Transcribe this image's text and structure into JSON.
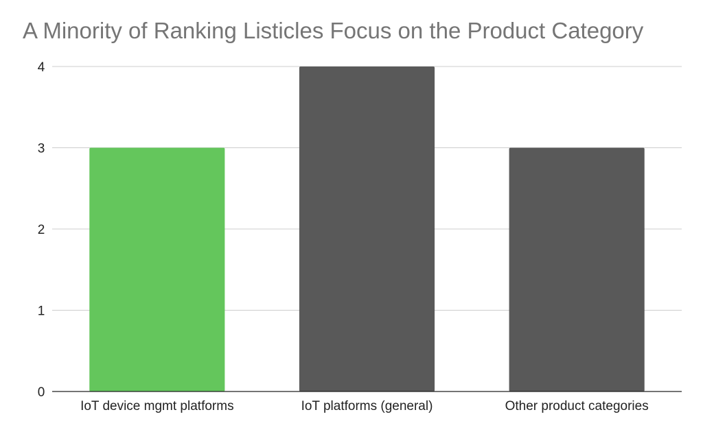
{
  "chart_data": {
    "type": "bar",
    "title": "A Minority of Ranking Listicles Focus on the Product Category",
    "xlabel": "",
    "ylabel": "",
    "categories": [
      "IoT device mgmt platforms",
      "IoT platforms (general)",
      "Other product categories"
    ],
    "values": [
      3,
      4,
      3
    ],
    "bar_colors": [
      "#64c65c",
      "#595959",
      "#595959"
    ],
    "ylim": [
      0,
      4
    ],
    "yticks": [
      "0",
      "1",
      "2",
      "3",
      "4"
    ],
    "grid": true,
    "legend": "none"
  }
}
